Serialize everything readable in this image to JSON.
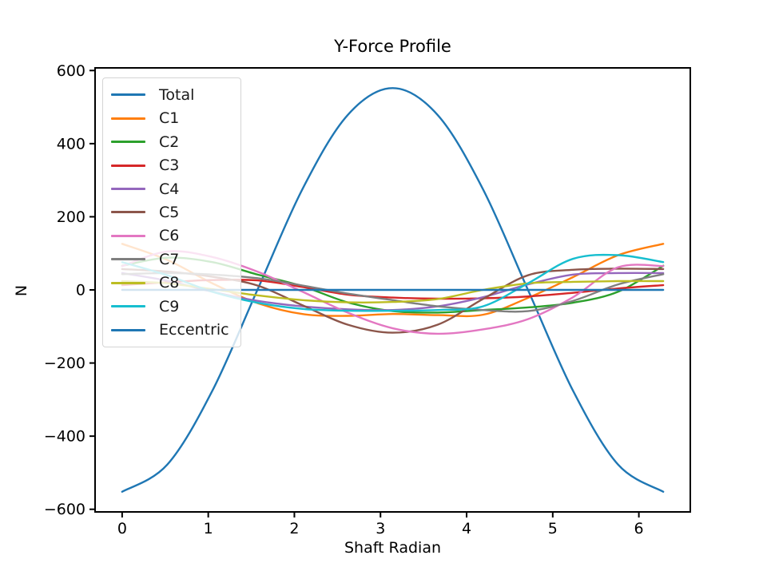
{
  "figure": {
    "title": "Y-Force Profile",
    "xlabel": "Shaft Radian",
    "ylabel": "N"
  },
  "axes": {
    "x_tick_labels": [
      "0",
      "1",
      "2",
      "3",
      "4",
      "5",
      "6"
    ],
    "y_tick_labels": [
      "−600",
      "−400",
      "−200",
      "0",
      "200",
      "400",
      "600"
    ],
    "spine_color": "#000000",
    "background": "#ffffff",
    "legend_border_color": "#d4d4d4"
  },
  "chart_data": {
    "type": "line",
    "title": "Y-Force Profile",
    "xlabel": "Shaft Radian",
    "ylabel": "N",
    "xlim": [
      -0.3142,
      6.5974
    ],
    "ylim": [
      -607.2,
      607.2
    ],
    "x_tick_values": [
      0,
      1,
      2,
      3,
      4,
      5,
      6
    ],
    "y_tick_values": [
      -600,
      -400,
      -200,
      0,
      200,
      400,
      600
    ],
    "grid": false,
    "legend_position": "upper left",
    "x": [
      0,
      0.5236,
      1.0472,
      1.5708,
      2.0944,
      2.618,
      3.1416,
      3.6652,
      4.1888,
      4.7124,
      5.236,
      5.7596,
      6.2832
    ],
    "series": [
      {
        "name": "Total",
        "color": "#1f77b4",
        "values": [
          -552,
          -478,
          -276,
          0,
          276,
          478,
          552,
          478,
          276,
          0,
          -276,
          -478,
          -552
        ]
      },
      {
        "name": "C1",
        "color": "#ff7f0e",
        "values": [
          126,
          82,
          18,
          -36,
          -66,
          -71,
          -66,
          -69,
          -68,
          -22,
          35,
          95,
          126
        ]
      },
      {
        "name": "C2",
        "color": "#2ca02c",
        "values": [
          66,
          88,
          76,
          42,
          10,
          -34,
          -58,
          -62,
          -55,
          -48,
          -35,
          -5,
          66
        ]
      },
      {
        "name": "C3",
        "color": "#d62728",
        "values": [
          13,
          21,
          27,
          26,
          8,
          -13,
          -21,
          -24,
          -23,
          -18,
          -8,
          4,
          13
        ]
      },
      {
        "name": "C4",
        "color": "#9467bd",
        "values": [
          46,
          25,
          -5,
          -30,
          -45,
          -53,
          -55,
          -45,
          -20,
          15,
          42,
          46,
          46
        ]
      },
      {
        "name": "C5",
        "color": "#8c564b",
        "values": [
          57,
          50,
          36,
          12,
          -42,
          -95,
          -117,
          -95,
          -25,
          40,
          55,
          58,
          57
        ]
      },
      {
        "name": "C6",
        "color": "#e377c2",
        "values": [
          65,
          105,
          90,
          50,
          -5,
          -62,
          -105,
          -120,
          -108,
          -80,
          -20,
          62,
          65
        ]
      },
      {
        "name": "C7",
        "color": "#7f7f7f",
        "values": [
          43,
          46,
          42,
          32,
          12,
          -10,
          -28,
          -45,
          -55,
          -58,
          -30,
          15,
          43
        ]
      },
      {
        "name": "C8",
        "color": "#bcbd22",
        "values": [
          24,
          18,
          2,
          -15,
          -28,
          -34,
          -33,
          -25,
          0,
          18,
          22,
          24,
          24
        ]
      },
      {
        "name": "C9",
        "color": "#17becf",
        "values": [
          76,
          40,
          -5,
          -35,
          -52,
          -57,
          -57,
          -55,
          -45,
          18,
          85,
          95,
          76
        ]
      },
      {
        "name": "Eccentric",
        "color": "#1f77b4",
        "values": [
          0,
          0,
          0,
          0,
          0,
          0,
          0,
          0,
          0,
          0,
          0,
          0,
          0
        ]
      }
    ]
  }
}
